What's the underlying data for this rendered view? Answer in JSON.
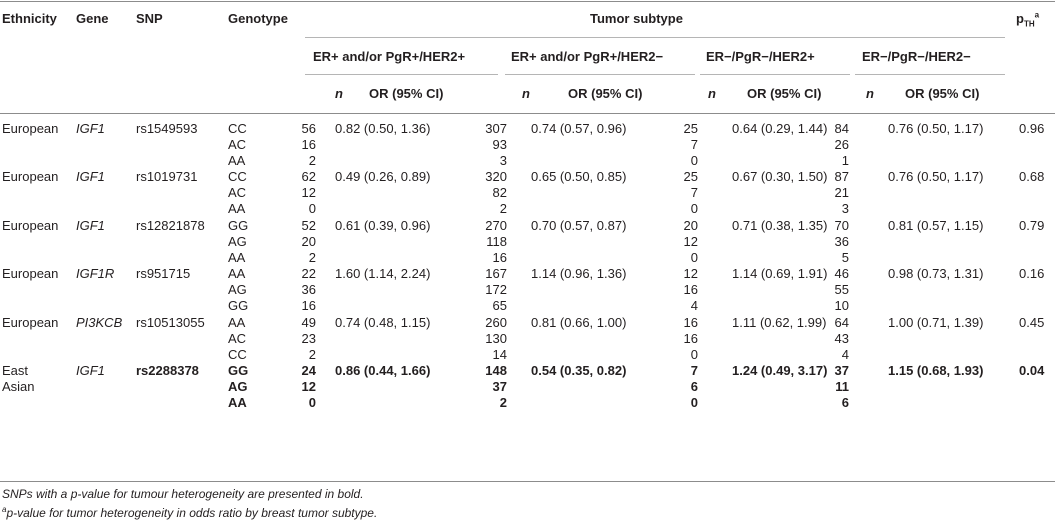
{
  "headers": {
    "ethnicity": "Ethnicity",
    "gene": "Gene",
    "snp": "SNP",
    "genotype": "Genotype",
    "tumor_subtype": "Tumor subtype",
    "pth_main": "p",
    "pth_sub": "TH",
    "pth_sup": "a",
    "subtypes": [
      "ER+ and/or PgR+/HER2+",
      "ER+ and/or PgR+/HER2−",
      "ER−/PgR−/HER2+",
      "ER−/PgR−/HER2−"
    ],
    "n_label": "n",
    "or_label": "OR (95% CI)"
  },
  "groups": [
    {
      "ethnicity": [
        "European"
      ],
      "gene": "IGF1",
      "snp": "rs1549593",
      "pth": "0.96",
      "bold": false,
      "rows": [
        {
          "genotype": "CC",
          "n": [
            "56",
            "307",
            "25",
            "84"
          ],
          "or": [
            "0.82 (0.50, 1.36)",
            "0.74 (0.57, 0.96)",
            "0.64 (0.29, 1.44)",
            "0.76 (0.50, 1.17)"
          ]
        },
        {
          "genotype": "AC",
          "n": [
            "16",
            "93",
            "7",
            "26"
          ],
          "or": [
            "",
            "",
            "",
            ""
          ]
        },
        {
          "genotype": "AA",
          "n": [
            "2",
            "3",
            "0",
            "1"
          ],
          "or": [
            "",
            "",
            "",
            ""
          ]
        }
      ]
    },
    {
      "ethnicity": [
        "European"
      ],
      "gene": "IGF1",
      "snp": "rs1019731",
      "pth": "0.68",
      "bold": false,
      "rows": [
        {
          "genotype": "CC",
          "n": [
            "62",
            "320",
            "25",
            "87"
          ],
          "or": [
            "0.49 (0.26, 0.89)",
            "0.65 (0.50, 0.85)",
            "0.67 (0.30, 1.50)",
            "0.76 (0.50, 1.17)"
          ]
        },
        {
          "genotype": "AC",
          "n": [
            "12",
            "82",
            "7",
            "21"
          ],
          "or": [
            "",
            "",
            "",
            ""
          ]
        },
        {
          "genotype": "AA",
          "n": [
            "0",
            "2",
            "0",
            "3"
          ],
          "or": [
            "",
            "",
            "",
            ""
          ]
        }
      ]
    },
    {
      "ethnicity": [
        "European"
      ],
      "gene": "IGF1",
      "snp": "rs12821878",
      "pth": "0.79",
      "bold": false,
      "rows": [
        {
          "genotype": "GG",
          "n": [
            "52",
            "270",
            "20",
            "70"
          ],
          "or": [
            "0.61 (0.39, 0.96)",
            "0.70 (0.57, 0.87)",
            "0.71 (0.38, 1.35)",
            "0.81 (0.57, 1.15)"
          ]
        },
        {
          "genotype": "AG",
          "n": [
            "20",
            "118",
            "12",
            "36"
          ],
          "or": [
            "",
            "",
            "",
            ""
          ]
        },
        {
          "genotype": "AA",
          "n": [
            "2",
            "16",
            "0",
            "5"
          ],
          "or": [
            "",
            "",
            "",
            ""
          ]
        }
      ]
    },
    {
      "ethnicity": [
        "European"
      ],
      "gene": "IGF1R",
      "snp": "rs951715",
      "pth": "0.16",
      "bold": false,
      "rows": [
        {
          "genotype": "AA",
          "n": [
            "22",
            "167",
            "12",
            "46"
          ],
          "or": [
            "1.60 (1.14, 2.24)",
            "1.14 (0.96, 1.36)",
            "1.14 (0.69, 1.91)",
            "0.98 (0.73, 1.31)"
          ]
        },
        {
          "genotype": "AG",
          "n": [
            "36",
            "172",
            "16",
            "55"
          ],
          "or": [
            "",
            "",
            "",
            ""
          ]
        },
        {
          "genotype": "GG",
          "n": [
            "16",
            "65",
            "4",
            "10"
          ],
          "or": [
            "",
            "",
            "",
            ""
          ]
        }
      ]
    },
    {
      "ethnicity": [
        "European"
      ],
      "gene": "PI3KCB",
      "snp": "rs10513055",
      "pth": "0.45",
      "bold": false,
      "rows": [
        {
          "genotype": "AA",
          "n": [
            "49",
            "260",
            "16",
            "64"
          ],
          "or": [
            "0.74 (0.48, 1.15)",
            "0.81 (0.66, 1.00)",
            "1.11 (0.62, 1.99)",
            "1.00 (0.71, 1.39)"
          ]
        },
        {
          "genotype": "AC",
          "n": [
            "23",
            "130",
            "16",
            "43"
          ],
          "or": [
            "",
            "",
            "",
            ""
          ]
        },
        {
          "genotype": "CC",
          "n": [
            "2",
            "14",
            "0",
            "4"
          ],
          "or": [
            "",
            "",
            "",
            ""
          ]
        }
      ]
    },
    {
      "ethnicity": [
        "East",
        "Asian"
      ],
      "gene": "IGF1",
      "snp": "rs2288378",
      "pth": "0.04",
      "bold": true,
      "rows": [
        {
          "genotype": "GG",
          "n": [
            "24",
            "148",
            "7",
            "37"
          ],
          "or": [
            "0.86 (0.44, 1.66)",
            "0.54 (0.35, 0.82)",
            "1.24 (0.49, 3.17)",
            "1.15 (0.68, 1.93)"
          ]
        },
        {
          "genotype": "AG",
          "n": [
            "12",
            "37",
            "6",
            "11"
          ],
          "or": [
            "",
            "",
            "",
            ""
          ]
        },
        {
          "genotype": "AA",
          "n": [
            "0",
            "2",
            "0",
            "6"
          ],
          "or": [
            "",
            "",
            "",
            ""
          ]
        }
      ]
    }
  ],
  "footnotes": {
    "note1": "SNPs with a p-value for tumour heterogeneity are presented in bold.",
    "note2_sup": "a",
    "note2": "p-value for tumor heterogeneity in odds ratio by breast tumor subtype."
  }
}
